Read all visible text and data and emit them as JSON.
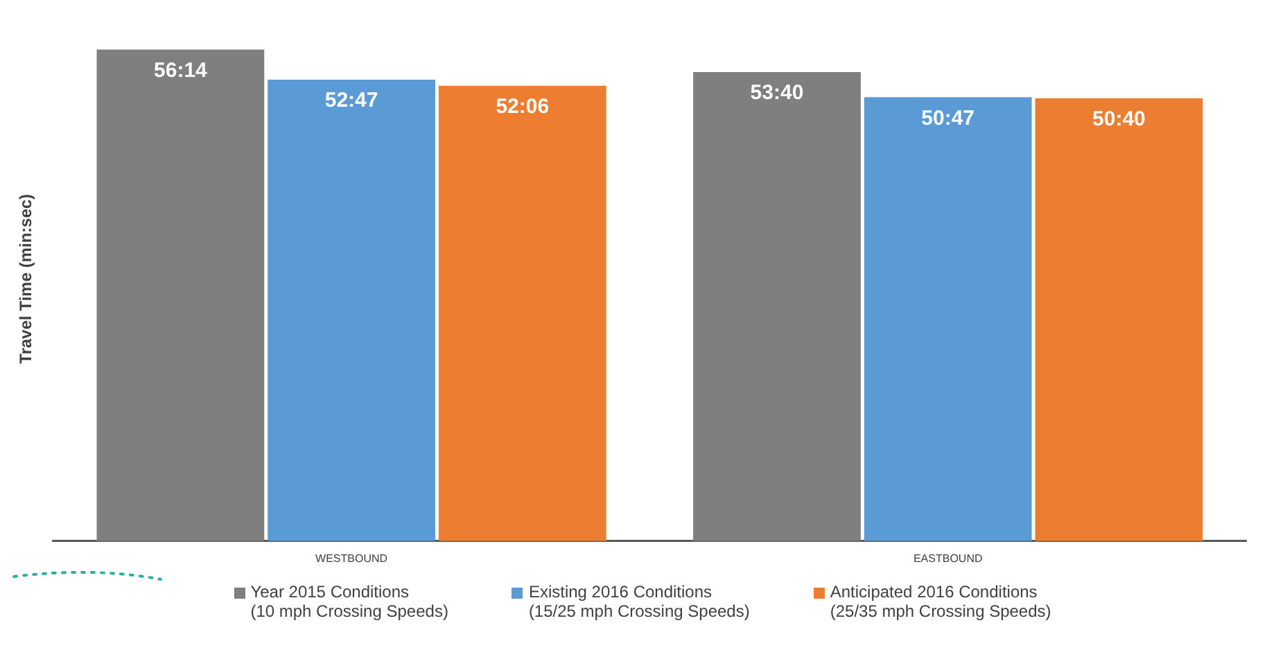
{
  "chart_data": {
    "type": "bar",
    "ylabel": "Travel Time (min:sec)",
    "categories": [
      "WESTBOUND",
      "EASTBOUND"
    ],
    "series": [
      {
        "name": "Year 2015 Conditions (10 mph Crossing Speeds)",
        "color": "#7f7f7f",
        "values": [
          56.233,
          53.667
        ],
        "value_labels": [
          "56:14",
          "53:40"
        ]
      },
      {
        "name": "Existing 2016 Conditions (15/25 mph Crossing Speeds)",
        "color": "#5b9bd5",
        "values": [
          52.783,
          50.783
        ],
        "value_labels": [
          "52:47",
          "50:47"
        ]
      },
      {
        "name": "Anticipated 2016 Conditions (25/35 mph Crossing Speeds)",
        "color": "#ed7d31",
        "values": [
          52.1,
          50.667
        ],
        "value_labels": [
          "52:06",
          "50:40"
        ]
      }
    ],
    "grid": false,
    "legend": "bottom"
  }
}
